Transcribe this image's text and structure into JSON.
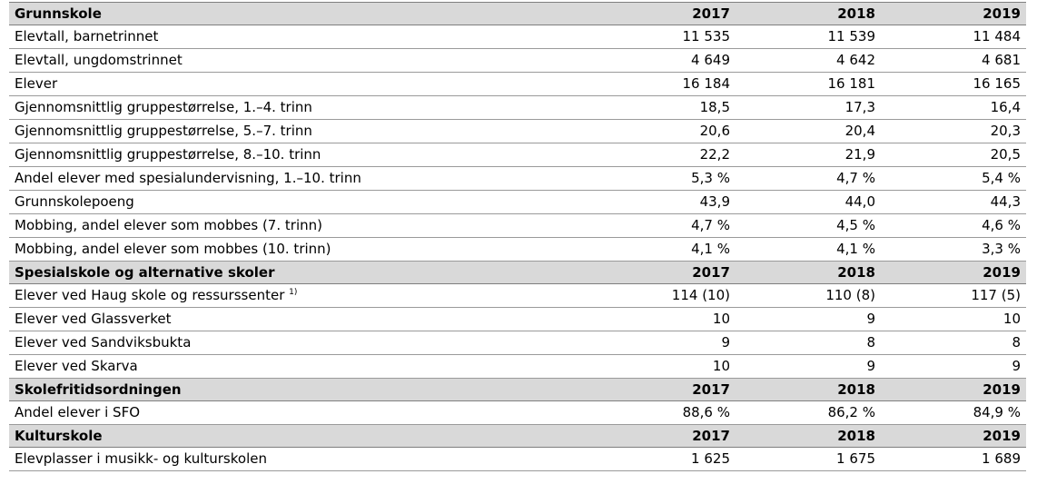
{
  "sections": [
    {
      "title": "Grunnskole",
      "years": [
        "2017",
        "2018",
        "2019"
      ],
      "rows": [
        {
          "label": "Elevtall, barnetrinnet",
          "values": [
            "11 535",
            "11 539",
            "11 484"
          ]
        },
        {
          "label": "Elevtall, ungdomstrinnet",
          "values": [
            "4 649",
            "4 642",
            "4 681"
          ]
        },
        {
          "label": "Elever",
          "values": [
            "16 184",
            "16 181",
            "16 165"
          ]
        },
        {
          "label": "Gjennomsnittlig gruppestørrelse, 1.–4. trinn",
          "values": [
            "18,5",
            "17,3",
            "16,4"
          ]
        },
        {
          "label": "Gjennomsnittlig gruppestørrelse, 5.–7. trinn",
          "values": [
            "20,6",
            "20,4",
            "20,3"
          ]
        },
        {
          "label": "Gjennomsnittlig gruppestørrelse, 8.–10. trinn",
          "values": [
            "22,2",
            "21,9",
            "20,5"
          ]
        },
        {
          "label": "Andel elever med spesialundervisning, 1.–10. trinn",
          "values": [
            "5,3 %",
            "4,7 %",
            "5,4 %"
          ]
        },
        {
          "label": "Grunnskolepoeng",
          "values": [
            "43,9",
            "44,0",
            "44,3"
          ]
        },
        {
          "label": "Mobbing, andel elever som mobbes (7. trinn)",
          "values": [
            "4,7 %",
            "4,5 %",
            "4,6 %"
          ]
        },
        {
          "label": "Mobbing, andel elever som mobbes (10. trinn)",
          "values": [
            "4,1 %",
            "4,1 %",
            "3,3 %"
          ]
        }
      ]
    },
    {
      "title": "Spesialskole og alternative skoler",
      "years": [
        "2017",
        "2018",
        "2019"
      ],
      "rows": [
        {
          "label": "Elever ved Haug skole og ressurssenter",
          "footnote": "1)",
          "values": [
            "114 (10)",
            "110 (8)",
            "117 (5)"
          ]
        },
        {
          "label": "Elever ved Glassverket",
          "values": [
            "10",
            "9",
            "10"
          ]
        },
        {
          "label": "Elever ved Sandviksbukta",
          "values": [
            "9",
            "8",
            "8"
          ]
        },
        {
          "label": "Elever ved Skarva",
          "values": [
            "10",
            "9",
            "9"
          ]
        }
      ]
    },
    {
      "title": "Skolefritidsordningen",
      "years": [
        "2017",
        "2018",
        "2019"
      ],
      "rows": [
        {
          "label": "Andel elever i SFO",
          "values": [
            "88,6 %",
            "86,2 %",
            "84,9 %"
          ]
        }
      ]
    },
    {
      "title": "Kulturskole",
      "years": [
        "2017",
        "2018",
        "2019"
      ],
      "rows": [
        {
          "label": "Elevplasser i musikk- og kulturskolen",
          "values": [
            "1 625",
            "1 675",
            "1 689"
          ]
        }
      ]
    }
  ]
}
